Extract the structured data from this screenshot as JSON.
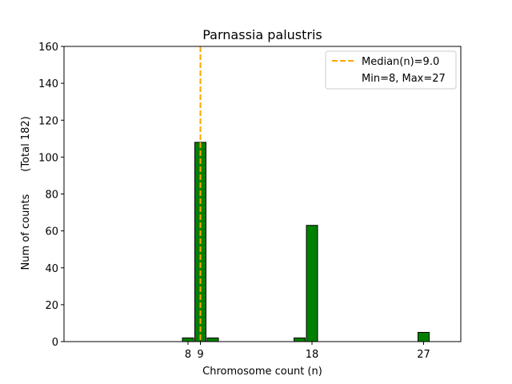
{
  "chart_data": {
    "type": "bar",
    "title": "Parnassia palustris",
    "xlabel": "Chromosome count (n)",
    "ylabel": "Num of counts",
    "ylabel_total": "(Total 182)",
    "xlim": [
      -2,
      30
    ],
    "ylim": [
      0,
      160
    ],
    "x_ticks": [
      8,
      9,
      18,
      27
    ],
    "y_ticks": [
      0,
      20,
      40,
      60,
      80,
      100,
      120,
      140,
      160
    ],
    "grid": false,
    "bar_color": "#008000",
    "bar_edge_color": "#000000",
    "bins": [
      {
        "x": 8,
        "value": 2
      },
      {
        "x": 9,
        "value": 108
      },
      {
        "x": 10,
        "value": 2
      },
      {
        "x": 17,
        "value": 2
      },
      {
        "x": 18,
        "value": 63
      },
      {
        "x": 27,
        "value": 5
      }
    ],
    "median_line": {
      "x": 9.0,
      "color": "#FFA500",
      "style": "dashed"
    },
    "legend": {
      "placement": "top-right",
      "entries": [
        "Median(n)=9.0",
        "Min=8, Max=27"
      ]
    }
  }
}
